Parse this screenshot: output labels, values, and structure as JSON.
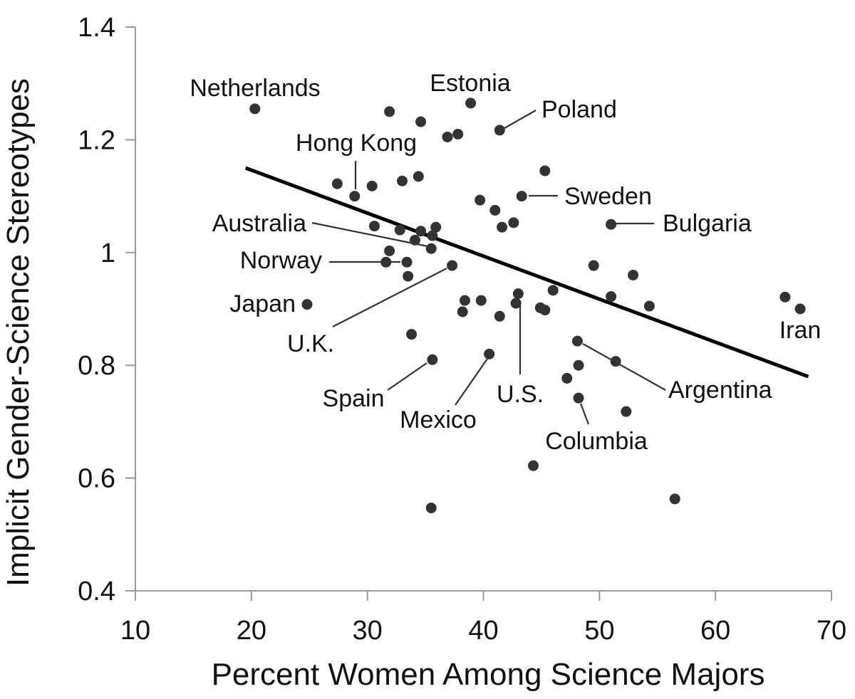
{
  "chart_data": {
    "type": "scatter",
    "xlabel": "Percent Women Among Science Majors",
    "ylabel": "Implicit Gender-Science Stereotypes",
    "xlim": [
      10,
      70
    ],
    "ylim": [
      0.4,
      1.4
    ],
    "xticks": [
      "10",
      "20",
      "30",
      "40",
      "50",
      "60",
      "70"
    ],
    "yticks": [
      "0.4",
      "0.6",
      "0.8",
      "1",
      "1.2",
      "1.4"
    ],
    "grid": false,
    "trendline": {
      "x": [
        19.5,
        68
      ],
      "y": [
        1.15,
        0.78
      ]
    },
    "points": [
      {
        "x": 20.3,
        "y": 1.255
      },
      {
        "x": 31.9,
        "y": 1.25
      },
      {
        "x": 34.6,
        "y": 1.232
      },
      {
        "x": 38.9,
        "y": 1.265
      },
      {
        "x": 36.9,
        "y": 1.205
      },
      {
        "x": 37.8,
        "y": 1.21
      },
      {
        "x": 41.4,
        "y": 1.217
      },
      {
        "x": 27.4,
        "y": 1.122
      },
      {
        "x": 28.9,
        "y": 1.1
      },
      {
        "x": 30.4,
        "y": 1.118
      },
      {
        "x": 33.0,
        "y": 1.127
      },
      {
        "x": 34.4,
        "y": 1.135
      },
      {
        "x": 45.3,
        "y": 1.145
      },
      {
        "x": 39.7,
        "y": 1.093
      },
      {
        "x": 43.3,
        "y": 1.1
      },
      {
        "x": 41.0,
        "y": 1.075
      },
      {
        "x": 42.6,
        "y": 1.053
      },
      {
        "x": 41.6,
        "y": 1.045
      },
      {
        "x": 51.0,
        "y": 1.05
      },
      {
        "x": 30.6,
        "y": 1.047
      },
      {
        "x": 32.8,
        "y": 1.04
      },
      {
        "x": 34.6,
        "y": 1.038
      },
      {
        "x": 35.9,
        "y": 1.045
      },
      {
        "x": 35.6,
        "y": 1.03
      },
      {
        "x": 34.1,
        "y": 1.022
      },
      {
        "x": 35.5,
        "y": 1.007
      },
      {
        "x": 31.9,
        "y": 1.003
      },
      {
        "x": 31.6,
        "y": 0.983
      },
      {
        "x": 33.4,
        "y": 0.983
      },
      {
        "x": 33.5,
        "y": 0.958
      },
      {
        "x": 37.3,
        "y": 0.977
      },
      {
        "x": 49.5,
        "y": 0.977
      },
      {
        "x": 52.9,
        "y": 0.96
      },
      {
        "x": 24.8,
        "y": 0.908
      },
      {
        "x": 38.4,
        "y": 0.915
      },
      {
        "x": 39.8,
        "y": 0.915
      },
      {
        "x": 38.2,
        "y": 0.895
      },
      {
        "x": 42.8,
        "y": 0.91
      },
      {
        "x": 43.0,
        "y": 0.927
      },
      {
        "x": 46.0,
        "y": 0.933
      },
      {
        "x": 41.4,
        "y": 0.887
      },
      {
        "x": 44.9,
        "y": 0.902
      },
      {
        "x": 45.3,
        "y": 0.898
      },
      {
        "x": 51.0,
        "y": 0.922
      },
      {
        "x": 54.3,
        "y": 0.905
      },
      {
        "x": 66.0,
        "y": 0.921
      },
      {
        "x": 67.3,
        "y": 0.9
      },
      {
        "x": 33.8,
        "y": 0.855
      },
      {
        "x": 48.1,
        "y": 0.843
      },
      {
        "x": 35.6,
        "y": 0.81
      },
      {
        "x": 40.5,
        "y": 0.82
      },
      {
        "x": 48.2,
        "y": 0.8
      },
      {
        "x": 51.4,
        "y": 0.807
      },
      {
        "x": 47.2,
        "y": 0.777
      },
      {
        "x": 48.2,
        "y": 0.742
      },
      {
        "x": 52.3,
        "y": 0.718
      },
      {
        "x": 44.3,
        "y": 0.622
      },
      {
        "x": 35.5,
        "y": 0.547
      },
      {
        "x": 56.5,
        "y": 0.563
      }
    ],
    "annotations": [
      {
        "text": "Netherlands",
        "point": [
          20.3,
          1.255
        ]
      },
      {
        "text": "Estonia",
        "point": [
          38.9,
          1.265
        ]
      },
      {
        "text": "Poland",
        "point": [
          41.4,
          1.217
        ]
      },
      {
        "text": "Hong Kong",
        "point": [
          28.9,
          1.1
        ]
      },
      {
        "text": "Sweden",
        "point": [
          43.3,
          1.1
        ]
      },
      {
        "text": "Bulgaria",
        "point": [
          51.0,
          1.05
        ]
      },
      {
        "text": "Australia",
        "point": [
          35.5,
          1.007
        ]
      },
      {
        "text": "Norway",
        "point": [
          33.4,
          0.983
        ]
      },
      {
        "text": "Japan",
        "point": [
          24.8,
          0.908
        ]
      },
      {
        "text": "U.K.",
        "point": [
          37.3,
          0.977
        ]
      },
      {
        "text": "Iran",
        "point": [
          67.3,
          0.9
        ]
      },
      {
        "text": "Spain",
        "point": [
          35.6,
          0.81
        ]
      },
      {
        "text": "Mexico",
        "point": [
          40.5,
          0.82
        ]
      },
      {
        "text": "U.S.",
        "point": [
          43.0,
          0.927
        ]
      },
      {
        "text": "Argentina",
        "point": [
          48.1,
          0.843
        ]
      },
      {
        "text": "Columbia",
        "point": [
          48.2,
          0.742
        ]
      }
    ]
  }
}
